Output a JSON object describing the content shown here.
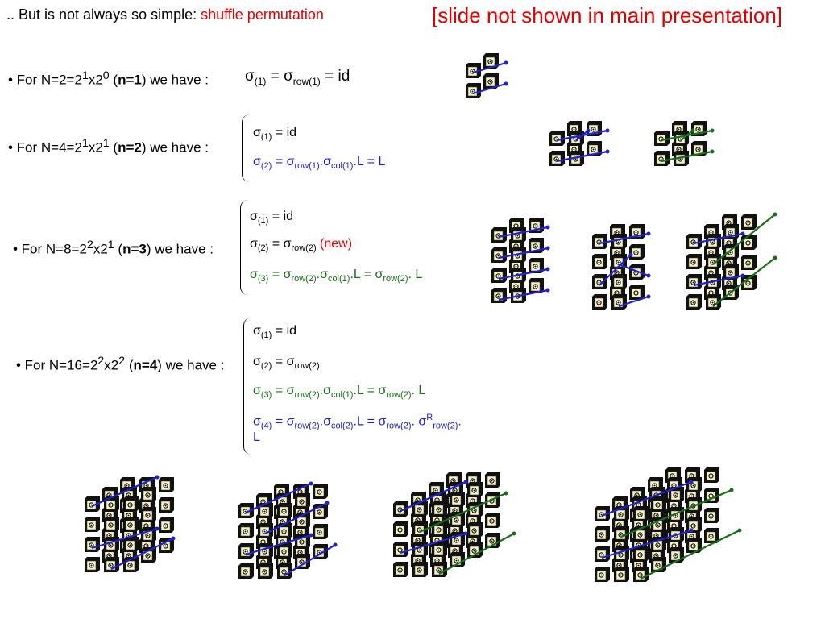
{
  "title": {
    "prefix": ".. But is not always so simple: ",
    "highlight": "shuffle permutation"
  },
  "note": "[slide not shown in main presentation]",
  "rows": [
    {
      "bullet_prefix": "• For N=2=2",
      "bullet_exp1": "1",
      "bullet_mid": "x2",
      "bullet_exp2": "0",
      "bullet_open": " (",
      "bullet_n": "n=1",
      "bullet_close": ") we have :"
    },
    {
      "bullet_prefix": "• For N=4=2",
      "bullet_exp1": "1",
      "bullet_mid": "x2",
      "bullet_exp2": "1",
      "bullet_open": " (",
      "bullet_n": "n=2",
      "bullet_close": ") we have :"
    },
    {
      "bullet_prefix": "• For N=8=2",
      "bullet_exp1": "2",
      "bullet_mid": "x2",
      "bullet_exp2": "1",
      "bullet_open": " (",
      "bullet_n": "n=3",
      "bullet_close": ") we have :"
    },
    {
      "bullet_prefix": "• For N=16=2",
      "bullet_exp1": "2",
      "bullet_mid": "x2",
      "bullet_exp2": "2",
      "bullet_open": " (",
      "bullet_n": "n=4",
      "bullet_close": ") we have :"
    }
  ],
  "tokens": {
    "sigma": "σ",
    "s1": "(1)",
    "s2": "(2)",
    "s3": "(3)",
    "s4": "(4)",
    "row1": "row(1)",
    "row2": "row(2)",
    "col1": "col(1)",
    "col2": "col(2)",
    "eq": " = ",
    "id": "id",
    "dot": ".",
    "L": "L",
    "R": "R",
    "dotL_eq_L": ".L = L",
    "dotL_eq": ".L = ",
    "dotSpaceL": ". L",
    "dotSpace": ". ",
    "new": " (new)"
  },
  "colors": {
    "red": "#e00000",
    "blue": "#2222cc",
    "green": "#1a6e1a",
    "tile_face": "#f4f0c8"
  },
  "icons": [
    "tile-cube-diagram-n1",
    "tile-cube-diagram-n2",
    "tile-cube-diagram-n3",
    "tile-cube-diagram-n4"
  ]
}
